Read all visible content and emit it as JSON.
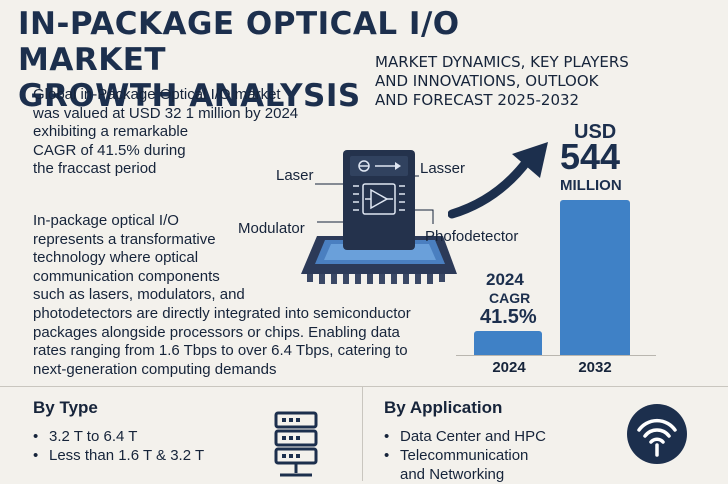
{
  "header": {
    "title_line1": "IN-PACKAGE OPTICAL I/O MARKET",
    "title_line2": "GROWTH ANALYSIS",
    "subtitle_line1": "MARKET DYNAMICS, KEY PLAYERS",
    "subtitle_line2": "AND INNOVATIONS, OUTLOOK",
    "subtitle_line3": "AND FORECAST 2025-2032"
  },
  "intro": {
    "line1": "Global in-Package Optical I/O market",
    "line2": "was valued at USD 32 1 million by 2024",
    "line3": "exhibiting a remarkable",
    "line4": "CAGR of 41.5% during",
    "line5": "the fraccast period"
  },
  "description": {
    "line1": "In-package optical I/O",
    "line2": "represents a transformative",
    "line3": "technology where optical",
    "line4": "communication components",
    "line5": "such as lasers, modulators, and",
    "line6": "photodetectors are directly integrated into semiconductor",
    "line7": "packages alongside processors or chips. Enabling data",
    "line8": "rates ranging from 1.6 Tbps to over 6.4 Tbps, catering to",
    "line9": "next-generation computing demands"
  },
  "diagram": {
    "label_laser_left": "Laser",
    "label_laser_right": "Lasser",
    "label_modulator": "Modulator",
    "label_photodetector": "Phofodetector"
  },
  "growth": {
    "currency": "USD",
    "value": "544",
    "unit": "MILLION",
    "cagr_year": "2024",
    "cagr_label": "CAGR",
    "cagr_value": "41.5%",
    "bars": [
      {
        "year": "2024",
        "value": 32.1
      },
      {
        "year": "2032",
        "value": 544
      }
    ]
  },
  "by_type": {
    "title": "By Type",
    "items": [
      "3.2 T to 6.4 T",
      "Less than 1.6 T & 3.2 T"
    ]
  },
  "by_application": {
    "title": "By Application",
    "items": [
      "Data Center and HPC",
      "Telecommunication",
      "and Networking"
    ]
  },
  "colors": {
    "navy": "#1c2f4d",
    "bar_blue": "#3f81c6",
    "chip_dark": "#24324c",
    "background": "#f3f1ec"
  },
  "icons": {
    "arrow": "trend-arrow-icon",
    "server": "server-rack-icon",
    "wifi": "wifi-signal-icon"
  }
}
